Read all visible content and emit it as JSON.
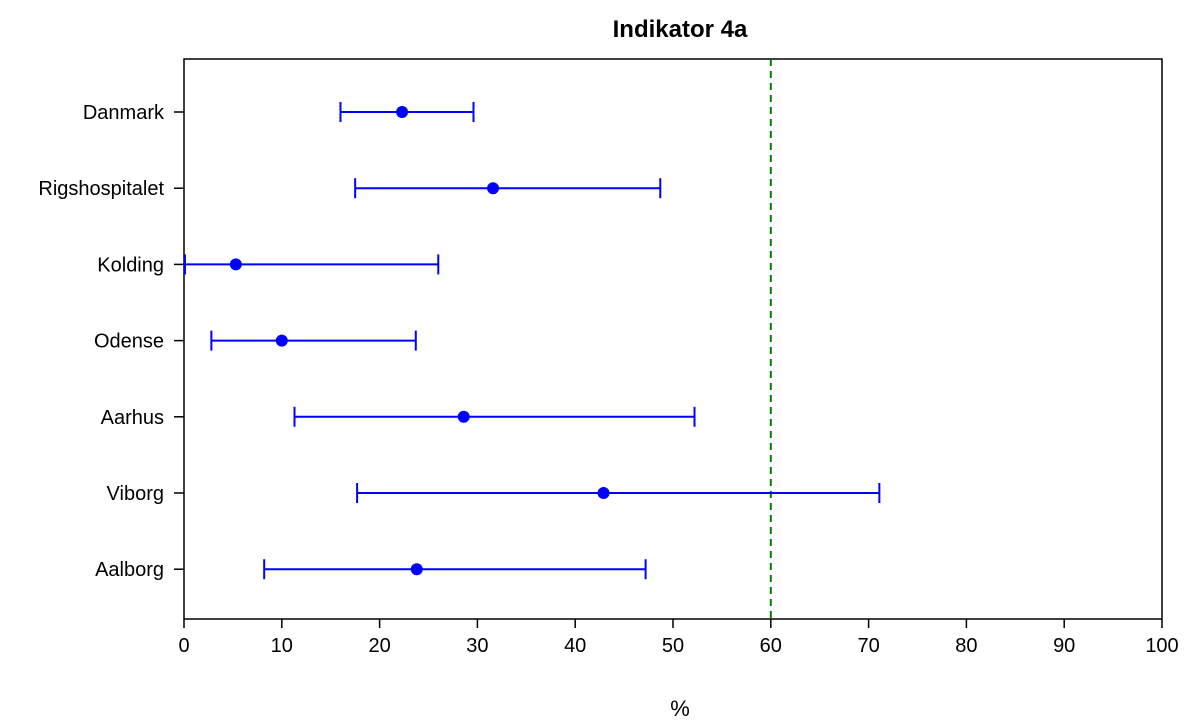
{
  "chart_data": {
    "type": "scatter",
    "title": "Indikator 4a",
    "xlabel": "%",
    "ylabel": "",
    "xlim": [
      0,
      100
    ],
    "xticks": [
      "0",
      "10",
      "20",
      "30",
      "40",
      "50",
      "60",
      "70",
      "80",
      "90",
      "100"
    ],
    "reference_line": {
      "x": 60,
      "style": "dashed",
      "color": "#008000"
    },
    "point_color": "#0000ff",
    "grid": false,
    "categories": [
      "Danmark",
      "Rigshospitalet",
      "Kolding",
      "Odense",
      "Aarhus",
      "Viborg",
      "Aalborg"
    ],
    "series": [
      {
        "points": [
          {
            "category": "Danmark",
            "estimate": 22.3,
            "lower": 16.0,
            "upper": 29.6
          },
          {
            "category": "Rigshospitalet",
            "estimate": 31.6,
            "lower": 17.5,
            "upper": 48.7
          },
          {
            "category": "Kolding",
            "estimate": 5.3,
            "lower": 0.1,
            "upper": 26.0
          },
          {
            "category": "Odense",
            "estimate": 10.0,
            "lower": 2.8,
            "upper": 23.7
          },
          {
            "category": "Aarhus",
            "estimate": 28.6,
            "lower": 11.3,
            "upper": 52.2
          },
          {
            "category": "Viborg",
            "estimate": 42.9,
            "lower": 17.7,
            "upper": 71.1
          },
          {
            "category": "Aalborg",
            "estimate": 23.8,
            "lower": 8.2,
            "upper": 47.2
          }
        ]
      }
    ]
  }
}
